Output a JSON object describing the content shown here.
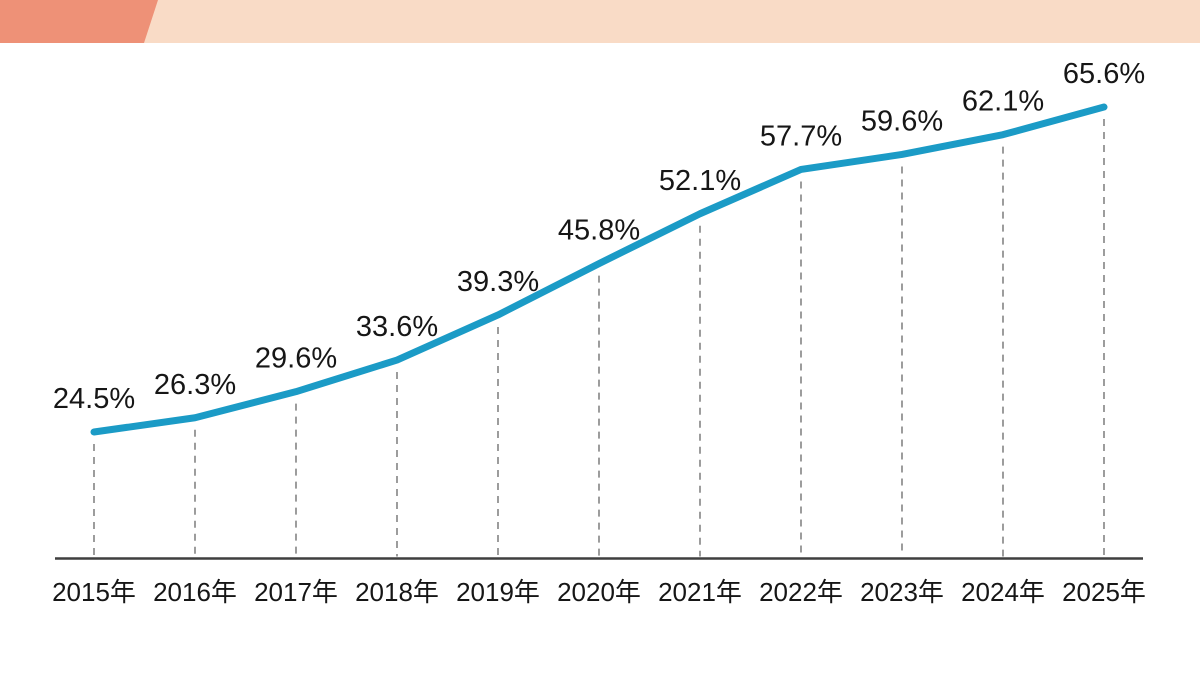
{
  "banner": {
    "dark_color": "#ee9177",
    "light_color": "#f9dbc6"
  },
  "chart_data": {
    "type": "line",
    "title": "",
    "xlabel": "",
    "ylabel": "",
    "categories": [
      "2015年",
      "2016年",
      "2017年",
      "2018年",
      "2019年",
      "2020年",
      "2021年",
      "2022年",
      "2023年",
      "2024年",
      "2025年"
    ],
    "values": [
      24.5,
      26.3,
      29.6,
      33.6,
      39.3,
      45.8,
      52.1,
      57.7,
      59.6,
      62.1,
      65.6
    ],
    "point_labels": [
      "24.5%",
      "26.3%",
      "29.6%",
      "33.6%",
      "39.3%",
      "45.8%",
      "52.1%",
      "57.7%",
      "59.6%",
      "62.1%",
      "65.6%"
    ],
    "unit": "%",
    "ylim": [
      24.5,
      65.6
    ],
    "grid": "vertical-dashed-guides",
    "legend": "none",
    "line_color": "#1b9bc6",
    "axis_color": "#3f3f3f",
    "guide_color": "#8c8c8c",
    "text_color": "#161616"
  }
}
